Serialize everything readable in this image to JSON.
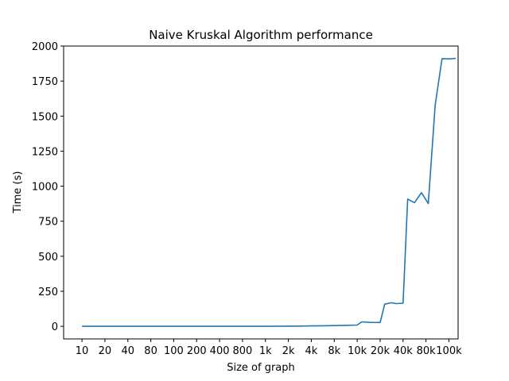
{
  "chart_data": {
    "type": "line",
    "title": "Naive Kruskal Algorithm performance",
    "xlabel": "Size of graph",
    "ylabel": "Time (s)",
    "x_tick_labels": [
      "10",
      "20",
      "40",
      "80",
      "100",
      "200",
      "400",
      "800",
      "1k",
      "2k",
      "4k",
      "8k",
      "10k",
      "20k",
      "40k",
      "80k",
      "100k"
    ],
    "y_ticks": [
      0,
      250,
      500,
      750,
      1000,
      1250,
      1500,
      1750,
      2000
    ],
    "ylim": [
      -90,
      2000
    ],
    "xlim": [
      -0.8,
      16.4
    ],
    "grid": false,
    "legend": "none",
    "series": [
      {
        "color": "#1f77b4",
        "points": [
          [
            0,
            0
          ],
          [
            1,
            0
          ],
          [
            2,
            0
          ],
          [
            3,
            0
          ],
          [
            4,
            0
          ],
          [
            5,
            0
          ],
          [
            6,
            0
          ],
          [
            7,
            0
          ],
          [
            8,
            0
          ],
          [
            9,
            1
          ],
          [
            9.5,
            2
          ],
          [
            10,
            3
          ],
          [
            10.5,
            4
          ],
          [
            11,
            5
          ],
          [
            11.5,
            7
          ],
          [
            12,
            9
          ],
          [
            12.2,
            32
          ],
          [
            12.6,
            28
          ],
          [
            13,
            27
          ],
          [
            13.2,
            158
          ],
          [
            13.5,
            168
          ],
          [
            13.7,
            162
          ],
          [
            14,
            165
          ],
          [
            14.2,
            908
          ],
          [
            14.5,
            882
          ],
          [
            14.8,
            954
          ],
          [
            15.1,
            876
          ],
          [
            15.4,
            1580
          ],
          [
            15.7,
            1910
          ],
          [
            16.0,
            1908
          ],
          [
            16.3,
            1912
          ]
        ]
      }
    ]
  }
}
